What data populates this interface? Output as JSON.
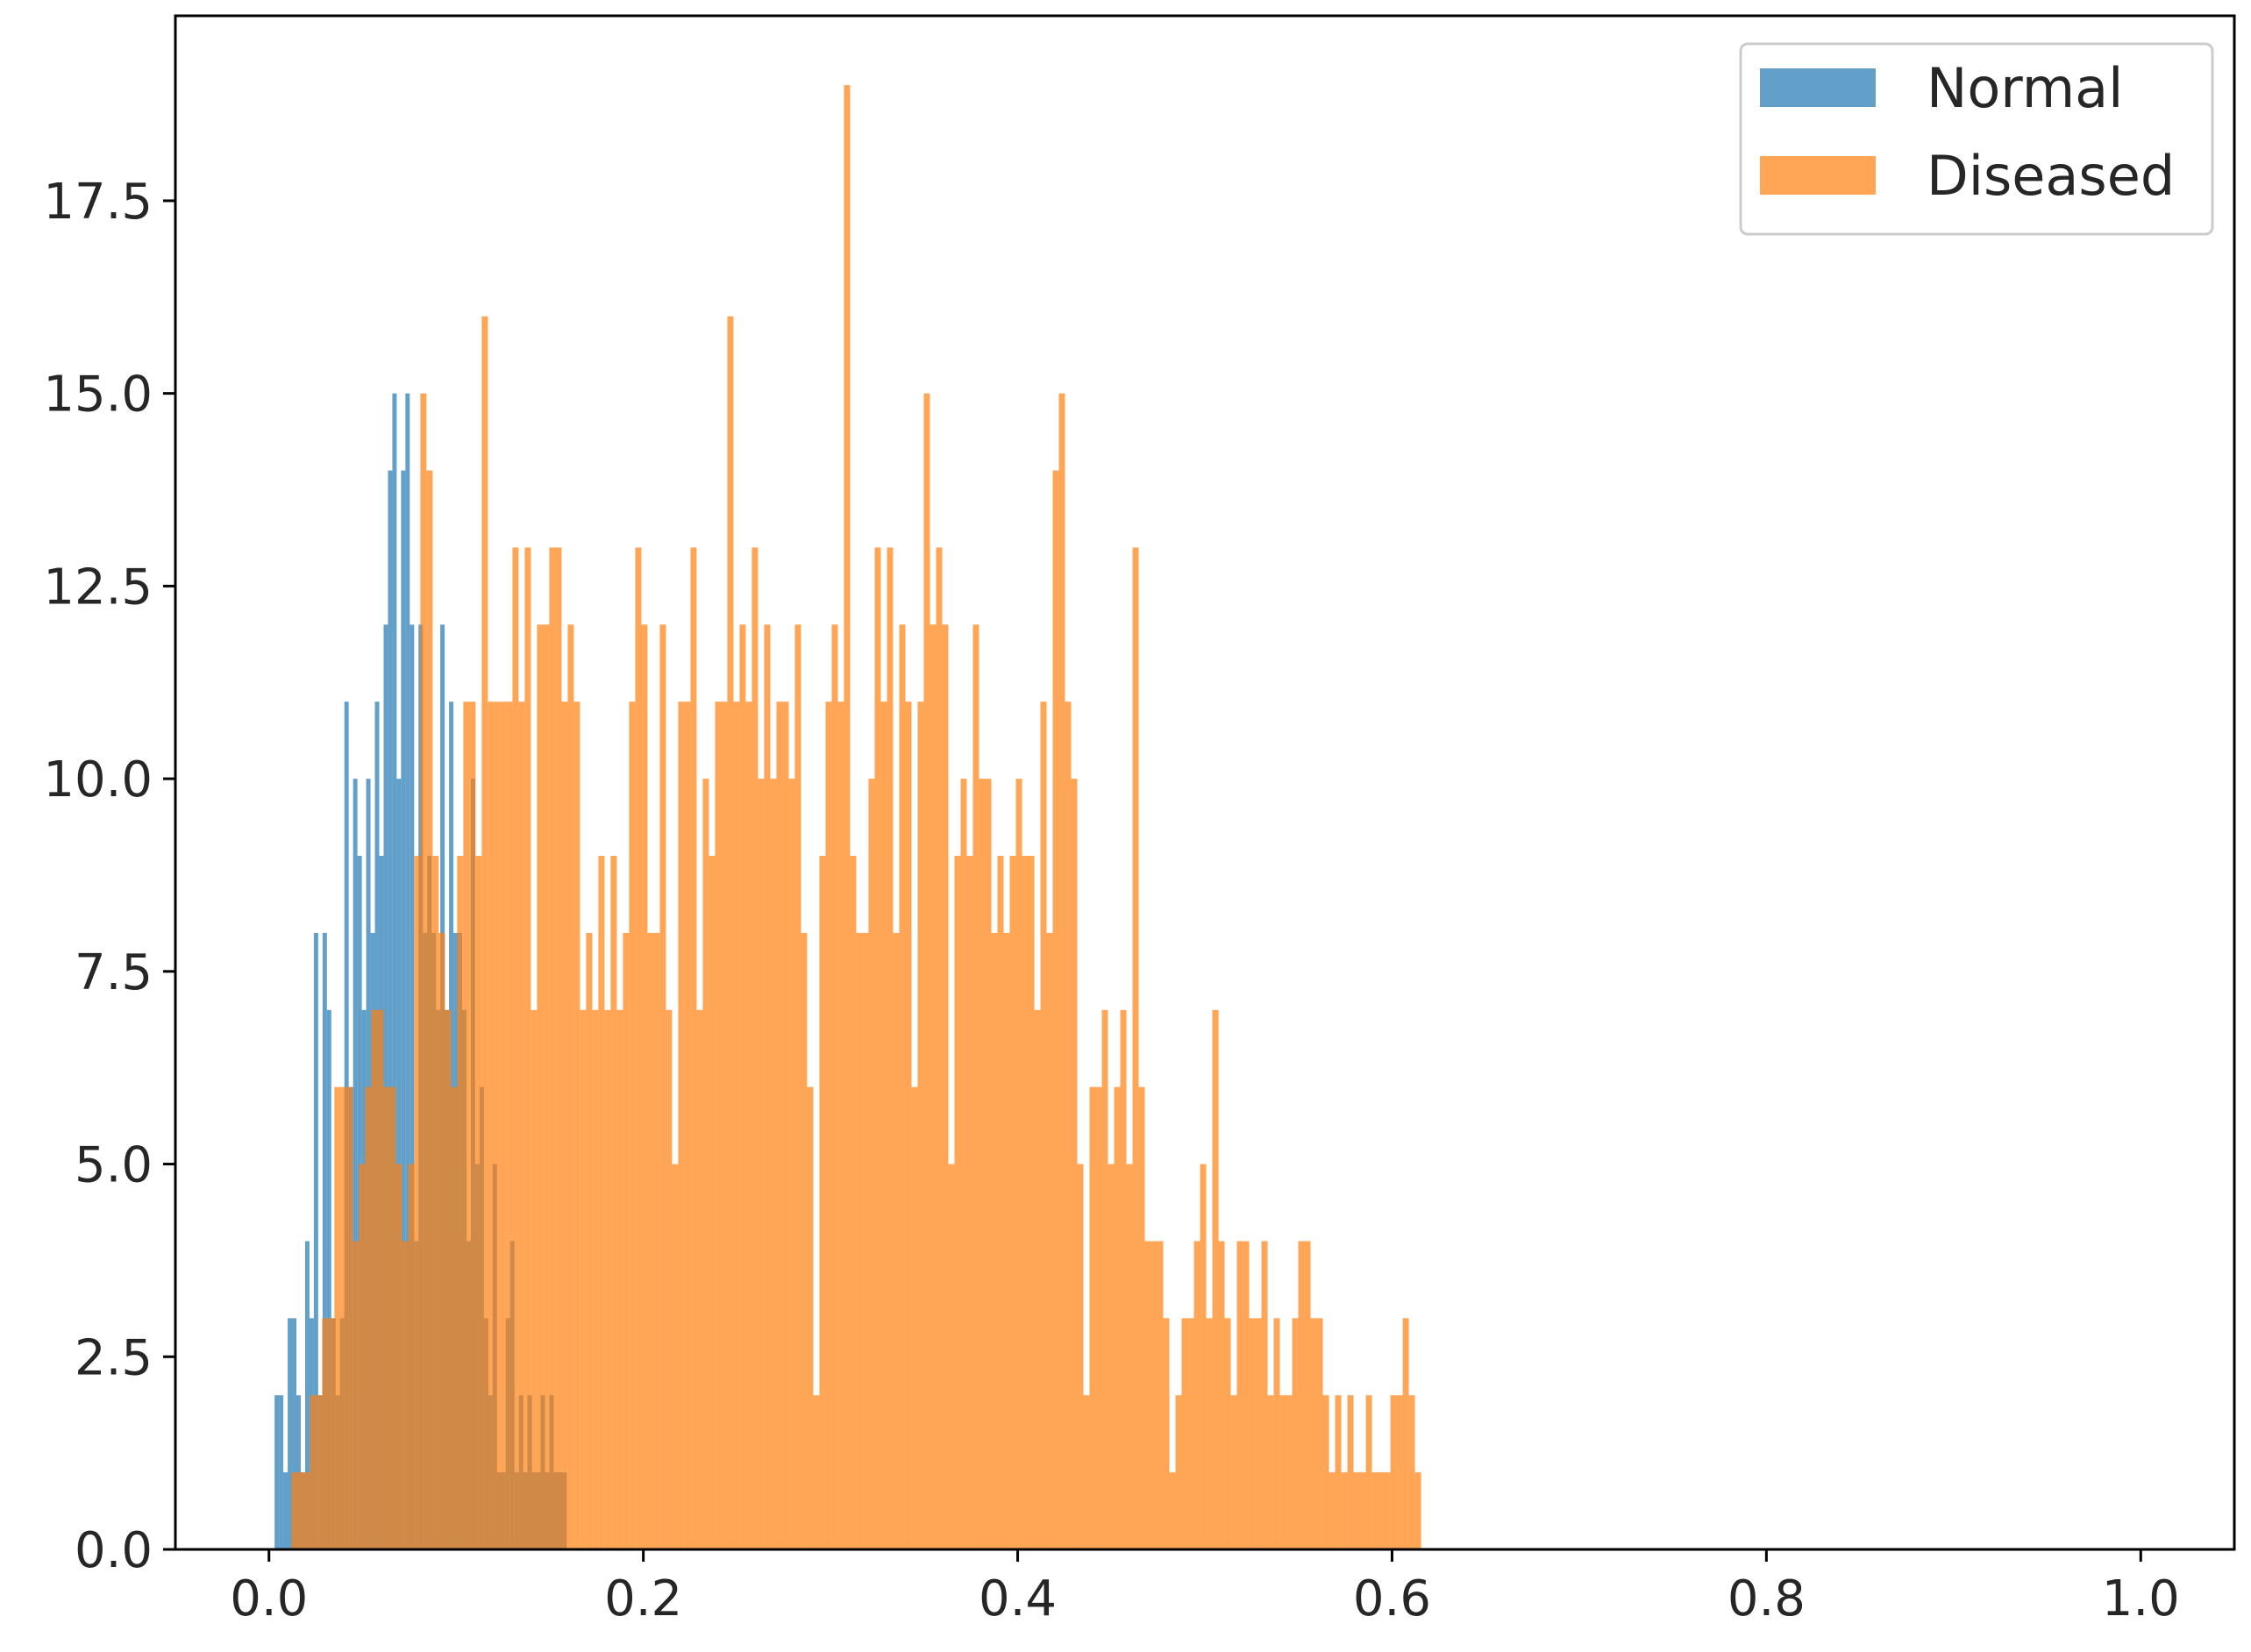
{
  "chart_data": {
    "type": "bar",
    "subtype": "histogram",
    "title": "",
    "xlabel": "",
    "ylabel": "",
    "xlim": [
      -0.05,
      1.05
    ],
    "ylim": [
      0,
      19.9
    ],
    "xticks": [
      0.0,
      0.2,
      0.4,
      0.6,
      0.8,
      1.0
    ],
    "xtick_labels": [
      "0.0",
      "0.2",
      "0.4",
      "0.6",
      "0.8",
      "1.0"
    ],
    "yticks": [
      0.0,
      2.5,
      5.0,
      7.5,
      10.0,
      12.5,
      15.0,
      17.5
    ],
    "ytick_labels": [
      "0.0",
      "2.5",
      "5.0",
      "7.5",
      "10.0",
      "12.5",
      "15.0",
      "17.5"
    ],
    "legend": {
      "position": "top-right",
      "entries": [
        "Normal",
        "Diseased"
      ]
    },
    "series": [
      {
        "name": "Normal",
        "color": "#1f77b4",
        "opacity": 0.7,
        "bin_start": 0.003,
        "bin_width": 0.00233,
        "counts": [
          2,
          2,
          1,
          3,
          3,
          2,
          1,
          4,
          3,
          8,
          2,
          8,
          7,
          3,
          2,
          3,
          11,
          6,
          10,
          9,
          7,
          10,
          8,
          11,
          9,
          12,
          14,
          15,
          10,
          14,
          15,
          12,
          4,
          12,
          8,
          9,
          8,
          7,
          12,
          7,
          11,
          8,
          8,
          7,
          4,
          10,
          5,
          6,
          3,
          2,
          5,
          1,
          1,
          3,
          4,
          1,
          2,
          1,
          2,
          1,
          1,
          2,
          1,
          2,
          1,
          1,
          1
        ]
      },
      {
        "name": "Diseased",
        "color": "#ff7f0e",
        "opacity": 0.7,
        "bin_start": 0.012,
        "bin_width": 0.00328,
        "counts": [
          1,
          1,
          1,
          2,
          2,
          3,
          3,
          6,
          6,
          6,
          4,
          5,
          6,
          7,
          7,
          6,
          6,
          5,
          4,
          5,
          9,
          15,
          14,
          9,
          8,
          7,
          6,
          9,
          11,
          11,
          9,
          16,
          11,
          11,
          11,
          11,
          13,
          11,
          13,
          7,
          12,
          12,
          13,
          13,
          11,
          12,
          11,
          7,
          8,
          7,
          9,
          7,
          9,
          7,
          8,
          11,
          13,
          12,
          8,
          8,
          12,
          7,
          5,
          11,
          11,
          13,
          7,
          10,
          9,
          11,
          11,
          16,
          11,
          12,
          11,
          13,
          10,
          12,
          10,
          11,
          11,
          10,
          12,
          8,
          6,
          2,
          9,
          11,
          12,
          11,
          19,
          9,
          8,
          8,
          10,
          13,
          11,
          13,
          8,
          12,
          11,
          6,
          11,
          15,
          12,
          13,
          12,
          5,
          9,
          10,
          9,
          12,
          10,
          10,
          8,
          9,
          8,
          9,
          10,
          9,
          9,
          7,
          11,
          8,
          14,
          15,
          11,
          10,
          5,
          2,
          6,
          6,
          7,
          5,
          6,
          7,
          5,
          13,
          6,
          4,
          4,
          4,
          3,
          1,
          2,
          3,
          3,
          4,
          5,
          3,
          7,
          4,
          3,
          2,
          4,
          4,
          3,
          3,
          4,
          2,
          3,
          2,
          2,
          3,
          4,
          4,
          3,
          3,
          2,
          1,
          2,
          1,
          2,
          1,
          1,
          2,
          1,
          1,
          1,
          2,
          2,
          3,
          2,
          1
        ]
      }
    ]
  }
}
